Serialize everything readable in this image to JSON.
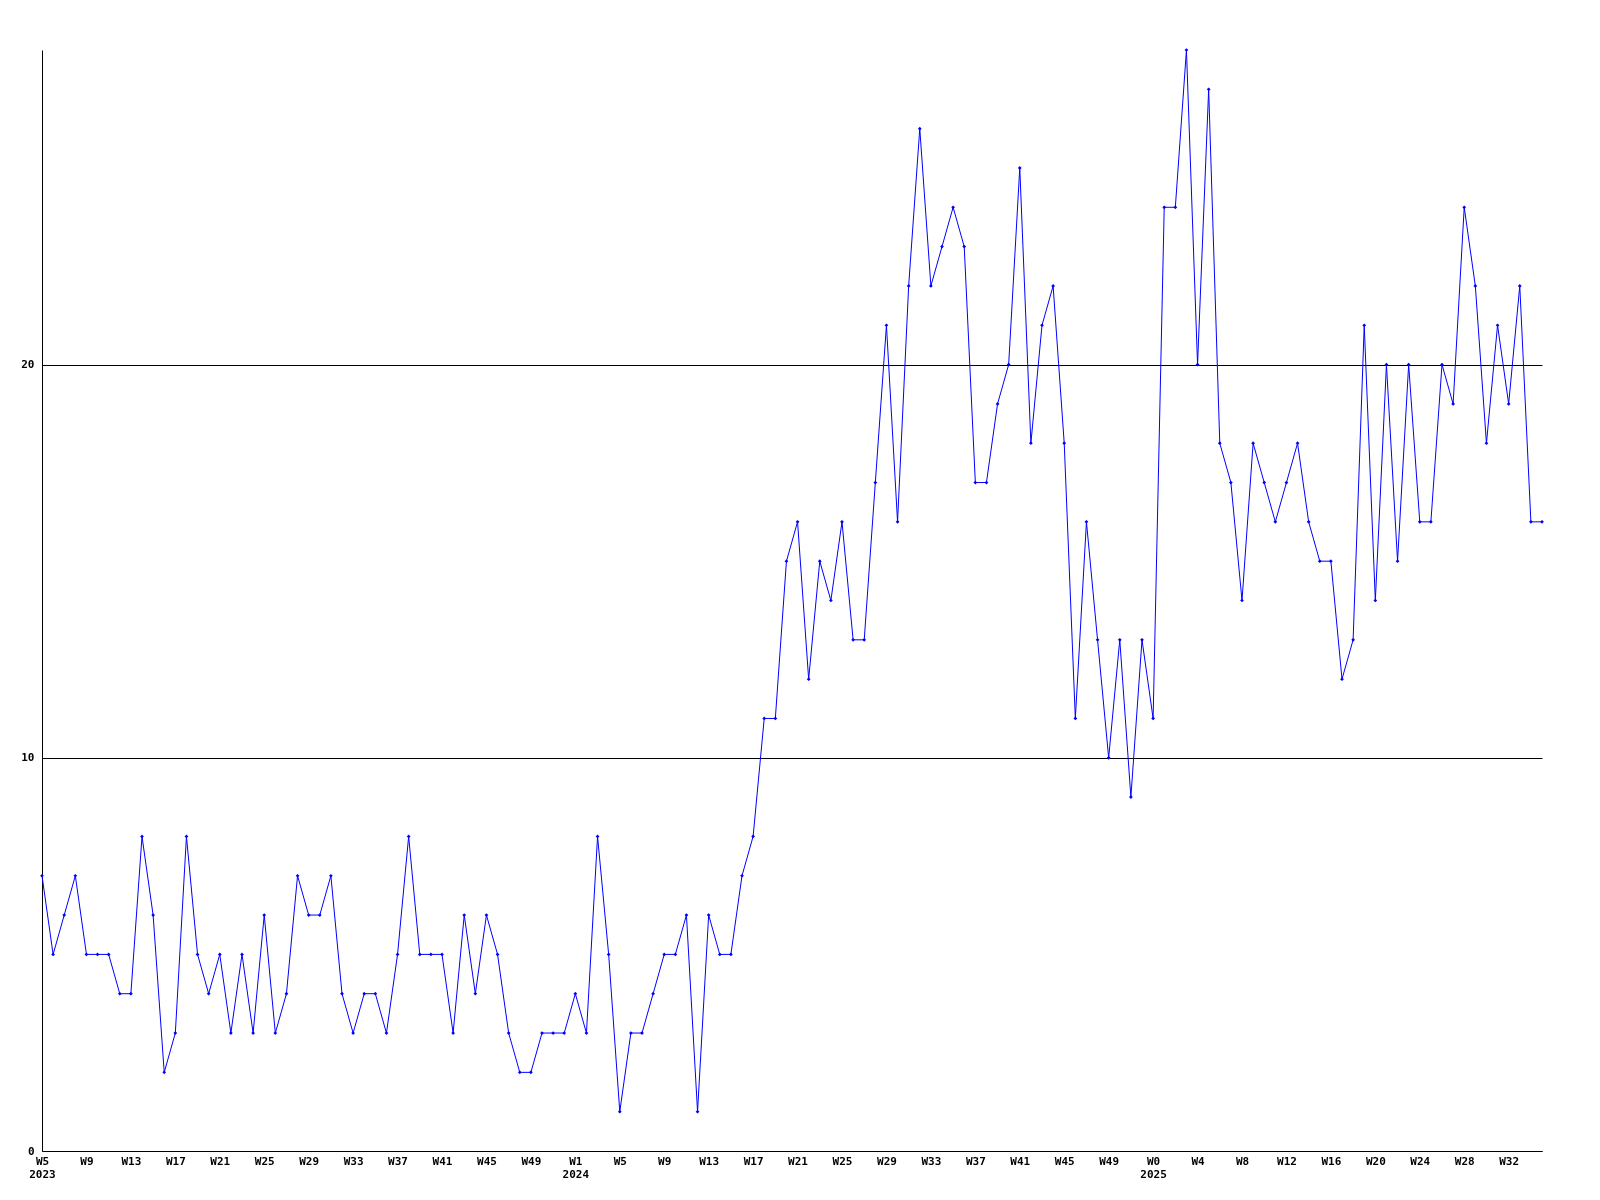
{
  "chart_data": {
    "type": "line",
    "categories": [
      "W5 2023",
      null,
      null,
      null,
      "W9",
      null,
      null,
      null,
      "W13",
      null,
      null,
      null,
      "W17",
      null,
      null,
      null,
      "W21",
      null,
      null,
      null,
      "W25",
      null,
      null,
      null,
      "W29",
      null,
      null,
      null,
      "W33",
      null,
      null,
      null,
      "W37",
      null,
      null,
      null,
      "W41",
      null,
      null,
      null,
      "W45",
      null,
      null,
      null,
      "W49",
      null,
      null,
      null,
      "W1 2024",
      null,
      null,
      null,
      "W5",
      null,
      null,
      null,
      "W9",
      null,
      null,
      null,
      "W13",
      null,
      null,
      null,
      "W17",
      null,
      null,
      null,
      "W21",
      null,
      null,
      null,
      "W25",
      null,
      null,
      null,
      "W29",
      null,
      null,
      null,
      "W33",
      null,
      null,
      null,
      "W37",
      null,
      null,
      null,
      "W41",
      null,
      null,
      null,
      "W45",
      null,
      null,
      null,
      "W49",
      null,
      null,
      null,
      "W0 2025",
      null,
      null,
      null,
      "W4",
      null,
      null,
      null,
      "W8",
      null,
      null,
      null,
      "W12",
      null,
      null,
      null,
      "W16",
      null,
      null,
      null,
      "W20",
      null,
      null,
      null,
      "W24",
      null,
      null,
      null,
      "W28",
      null,
      null,
      null,
      "W32",
      null,
      null,
      null
    ],
    "series": [
      {
        "color": "#0000ff",
        "values": [
          7,
          5,
          6,
          7,
          5,
          5,
          5,
          4,
          4,
          8,
          6,
          2,
          3,
          8,
          5,
          4,
          5,
          3,
          5,
          3,
          6,
          3,
          4,
          7,
          6,
          6,
          7,
          4,
          3,
          4,
          4,
          3,
          5,
          8,
          5,
          5,
          5,
          3,
          6,
          4,
          6,
          5,
          3,
          2,
          2,
          3,
          3,
          3,
          4,
          3,
          8,
          5,
          1,
          3,
          3,
          4,
          5,
          5,
          6,
          1,
          6,
          5,
          5,
          7,
          8,
          11,
          11,
          15,
          16,
          12,
          15,
          14,
          16,
          13,
          13,
          17,
          21,
          16,
          22,
          26,
          22,
          23,
          24,
          23,
          17,
          17,
          19,
          20,
          25,
          18,
          21,
          22,
          18,
          11,
          16,
          13,
          10,
          13,
          9,
          13,
          11,
          24,
          24,
          28,
          20,
          27,
          18,
          17,
          14,
          18,
          17,
          16,
          17,
          18,
          16,
          15,
          15,
          12,
          13,
          21,
          14,
          20,
          15,
          20,
          16,
          16,
          20,
          19,
          24,
          22,
          18,
          21,
          19,
          22,
          16,
          16
        ]
      }
    ],
    "ylim": [
      0,
      28
    ],
    "yticks": [
      0,
      10,
      20
    ],
    "grid": "y",
    "marker": "diamond",
    "line_style": "solid"
  }
}
